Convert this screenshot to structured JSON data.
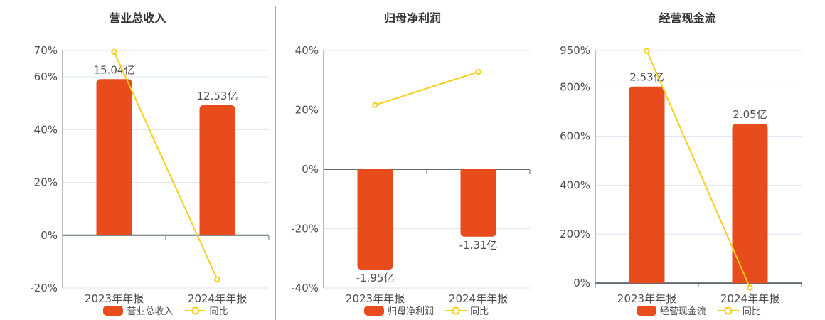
{
  "colors": {
    "bar": "#e84c1c",
    "line": "#f6ce1c",
    "grid": "#dde6f2",
    "zero_axis": "#5f6b77",
    "y_axis": "#8a9097",
    "text": "#4d4d4d",
    "title": "#333333",
    "divider": "#a8a8a8",
    "marker_fill": "#ffffff"
  },
  "chart_data": [
    {
      "type": "bar",
      "title": "营业总收入",
      "categories": [
        "2023年年报",
        "2024年年报"
      ],
      "bar_series": {
        "name": "营业总收入",
        "unit": "亿",
        "values": [
          15.04,
          12.53
        ],
        "labels": [
          "15.04亿",
          "12.53亿"
        ]
      },
      "line_series": {
        "name": "同比",
        "unit": "%",
        "values": [
          69.5,
          -16.7
        ]
      },
      "y_axis": {
        "ylim": [
          -20,
          70
        ],
        "ticks": [
          {
            "label": "-20%",
            "value": -20
          },
          {
            "label": "0%",
            "value": 0
          },
          {
            "label": "20%",
            "value": 20
          },
          {
            "label": "40%",
            "value": 40
          },
          {
            "label": "60%",
            "value": 60
          },
          {
            "label": "70%",
            "value": 70
          }
        ]
      },
      "legend": {
        "bar_label": "营业总收入",
        "line_label": "同比"
      },
      "grid_on": true,
      "legend_position": "bottom-center"
    },
    {
      "type": "bar",
      "title": "归母净利润",
      "categories": [
        "2023年年报",
        "2024年年报"
      ],
      "bar_series": {
        "name": "归母净利润",
        "unit": "亿",
        "values": [
          -1.95,
          -1.31
        ],
        "labels": [
          "-1.95亿",
          "-1.31亿"
        ]
      },
      "line_series": {
        "name": "同比",
        "unit": "%",
        "values": [
          21.6,
          32.8
        ]
      },
      "y_axis": {
        "ylim": [
          -40,
          40
        ],
        "ticks": [
          {
            "label": "-40%",
            "value": -40
          },
          {
            "label": "-20%",
            "value": -20
          },
          {
            "label": "0%",
            "value": 0
          },
          {
            "label": "20%",
            "value": 20
          },
          {
            "label": "40%",
            "value": 40
          }
        ]
      },
      "legend": {
        "bar_label": "归母净利润",
        "line_label": "同比"
      },
      "grid_on": true,
      "legend_position": "bottom-center"
    },
    {
      "type": "bar",
      "title": "经营现金流",
      "categories": [
        "2023年年报",
        "2024年年报"
      ],
      "bar_series": {
        "name": "经营现金流",
        "unit": "亿",
        "values": [
          2.53,
          2.05
        ],
        "labels": [
          "2.53亿",
          "2.05亿"
        ]
      },
      "line_series": {
        "name": "同比",
        "unit": "%",
        "values": [
          948,
          -19
        ]
      },
      "y_axis": {
        "ylim": [
          -20,
          950
        ],
        "ticks": [
          {
            "label": "0%",
            "value": 0
          },
          {
            "label": "200%",
            "value": 200
          },
          {
            "label": "400%",
            "value": 400
          },
          {
            "label": "600%",
            "value": 600
          },
          {
            "label": "800%",
            "value": 800
          },
          {
            "label": "950%",
            "value": 950
          }
        ]
      },
      "legend": {
        "bar_label": "经营现金流",
        "line_label": "同比"
      },
      "grid_on": true,
      "legend_position": "bottom-center"
    }
  ]
}
